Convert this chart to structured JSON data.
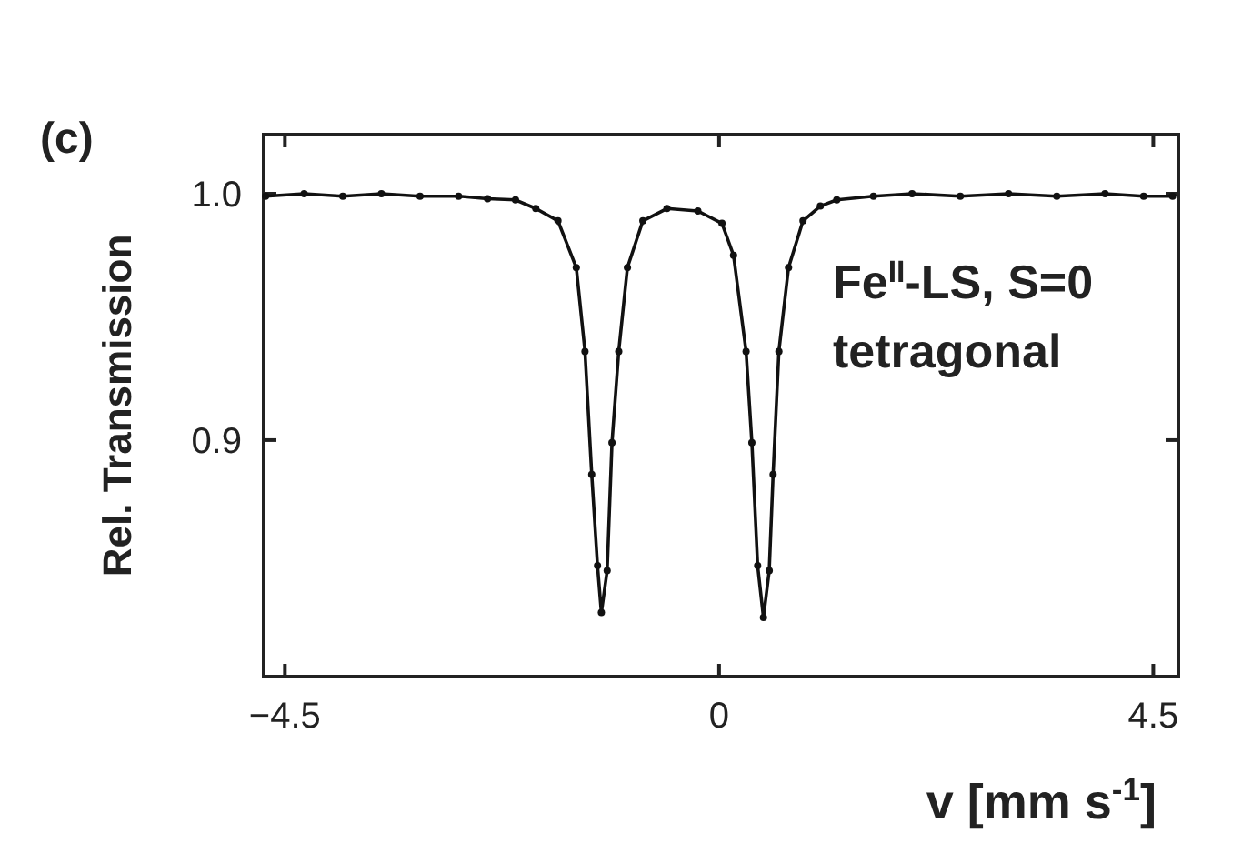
{
  "chart_data": {
    "type": "line",
    "title": "(c)",
    "xlabel": "v [mm s$^{-1}$]",
    "ylabel": "Rel. Transmission",
    "annotations": [
      "Fe$^{II}$-LS, S=0",
      "tetragonal"
    ],
    "xlim": [
      -4.72,
      4.76
    ],
    "ylim": [
      0.804,
      1.024
    ],
    "xticks": [
      -4.5,
      0,
      4.5
    ],
    "yticks": [
      {
        "value": 0.9,
        "label": "0.9"
      },
      {
        "value": 1,
        "label": "1.0"
      }
    ],
    "marker": "circle",
    "line_style": "solid",
    "grid": false,
    "series": [
      {
        "color": "#111111",
        "x": [
          -4.7,
          -4.3,
          -3.9,
          -3.5,
          -3.1,
          -2.7,
          -2.4,
          -2.11,
          -1.9,
          -1.67,
          -1.48,
          -1.39,
          -1.32,
          -1.26,
          -1.22,
          -1.16,
          -1.11,
          -1.04,
          -0.95,
          -0.79,
          -0.54,
          -0.22,
          0.03,
          0.15,
          0.28,
          0.34,
          0.4,
          0.46,
          0.52,
          0.56,
          0.62,
          0.72,
          0.87,
          1.05,
          1.22,
          1.6,
          2.0,
          2.5,
          3.0,
          3.5,
          4.0,
          4.4,
          4.7
        ],
        "values": [
          0.999,
          1.0,
          0.999,
          1.0,
          0.999,
          0.999,
          0.998,
          0.9975,
          0.994,
          0.989,
          0.97,
          0.936,
          0.886,
          0.849,
          0.83,
          0.847,
          0.899,
          0.936,
          0.97,
          0.989,
          0.994,
          0.993,
          0.988,
          0.975,
          0.936,
          0.899,
          0.849,
          0.828,
          0.847,
          0.886,
          0.936,
          0.97,
          0.989,
          0.995,
          0.9975,
          0.999,
          1.0,
          0.999,
          1.0,
          0.999,
          1.0,
          0.999,
          0.999
        ]
      }
    ]
  }
}
